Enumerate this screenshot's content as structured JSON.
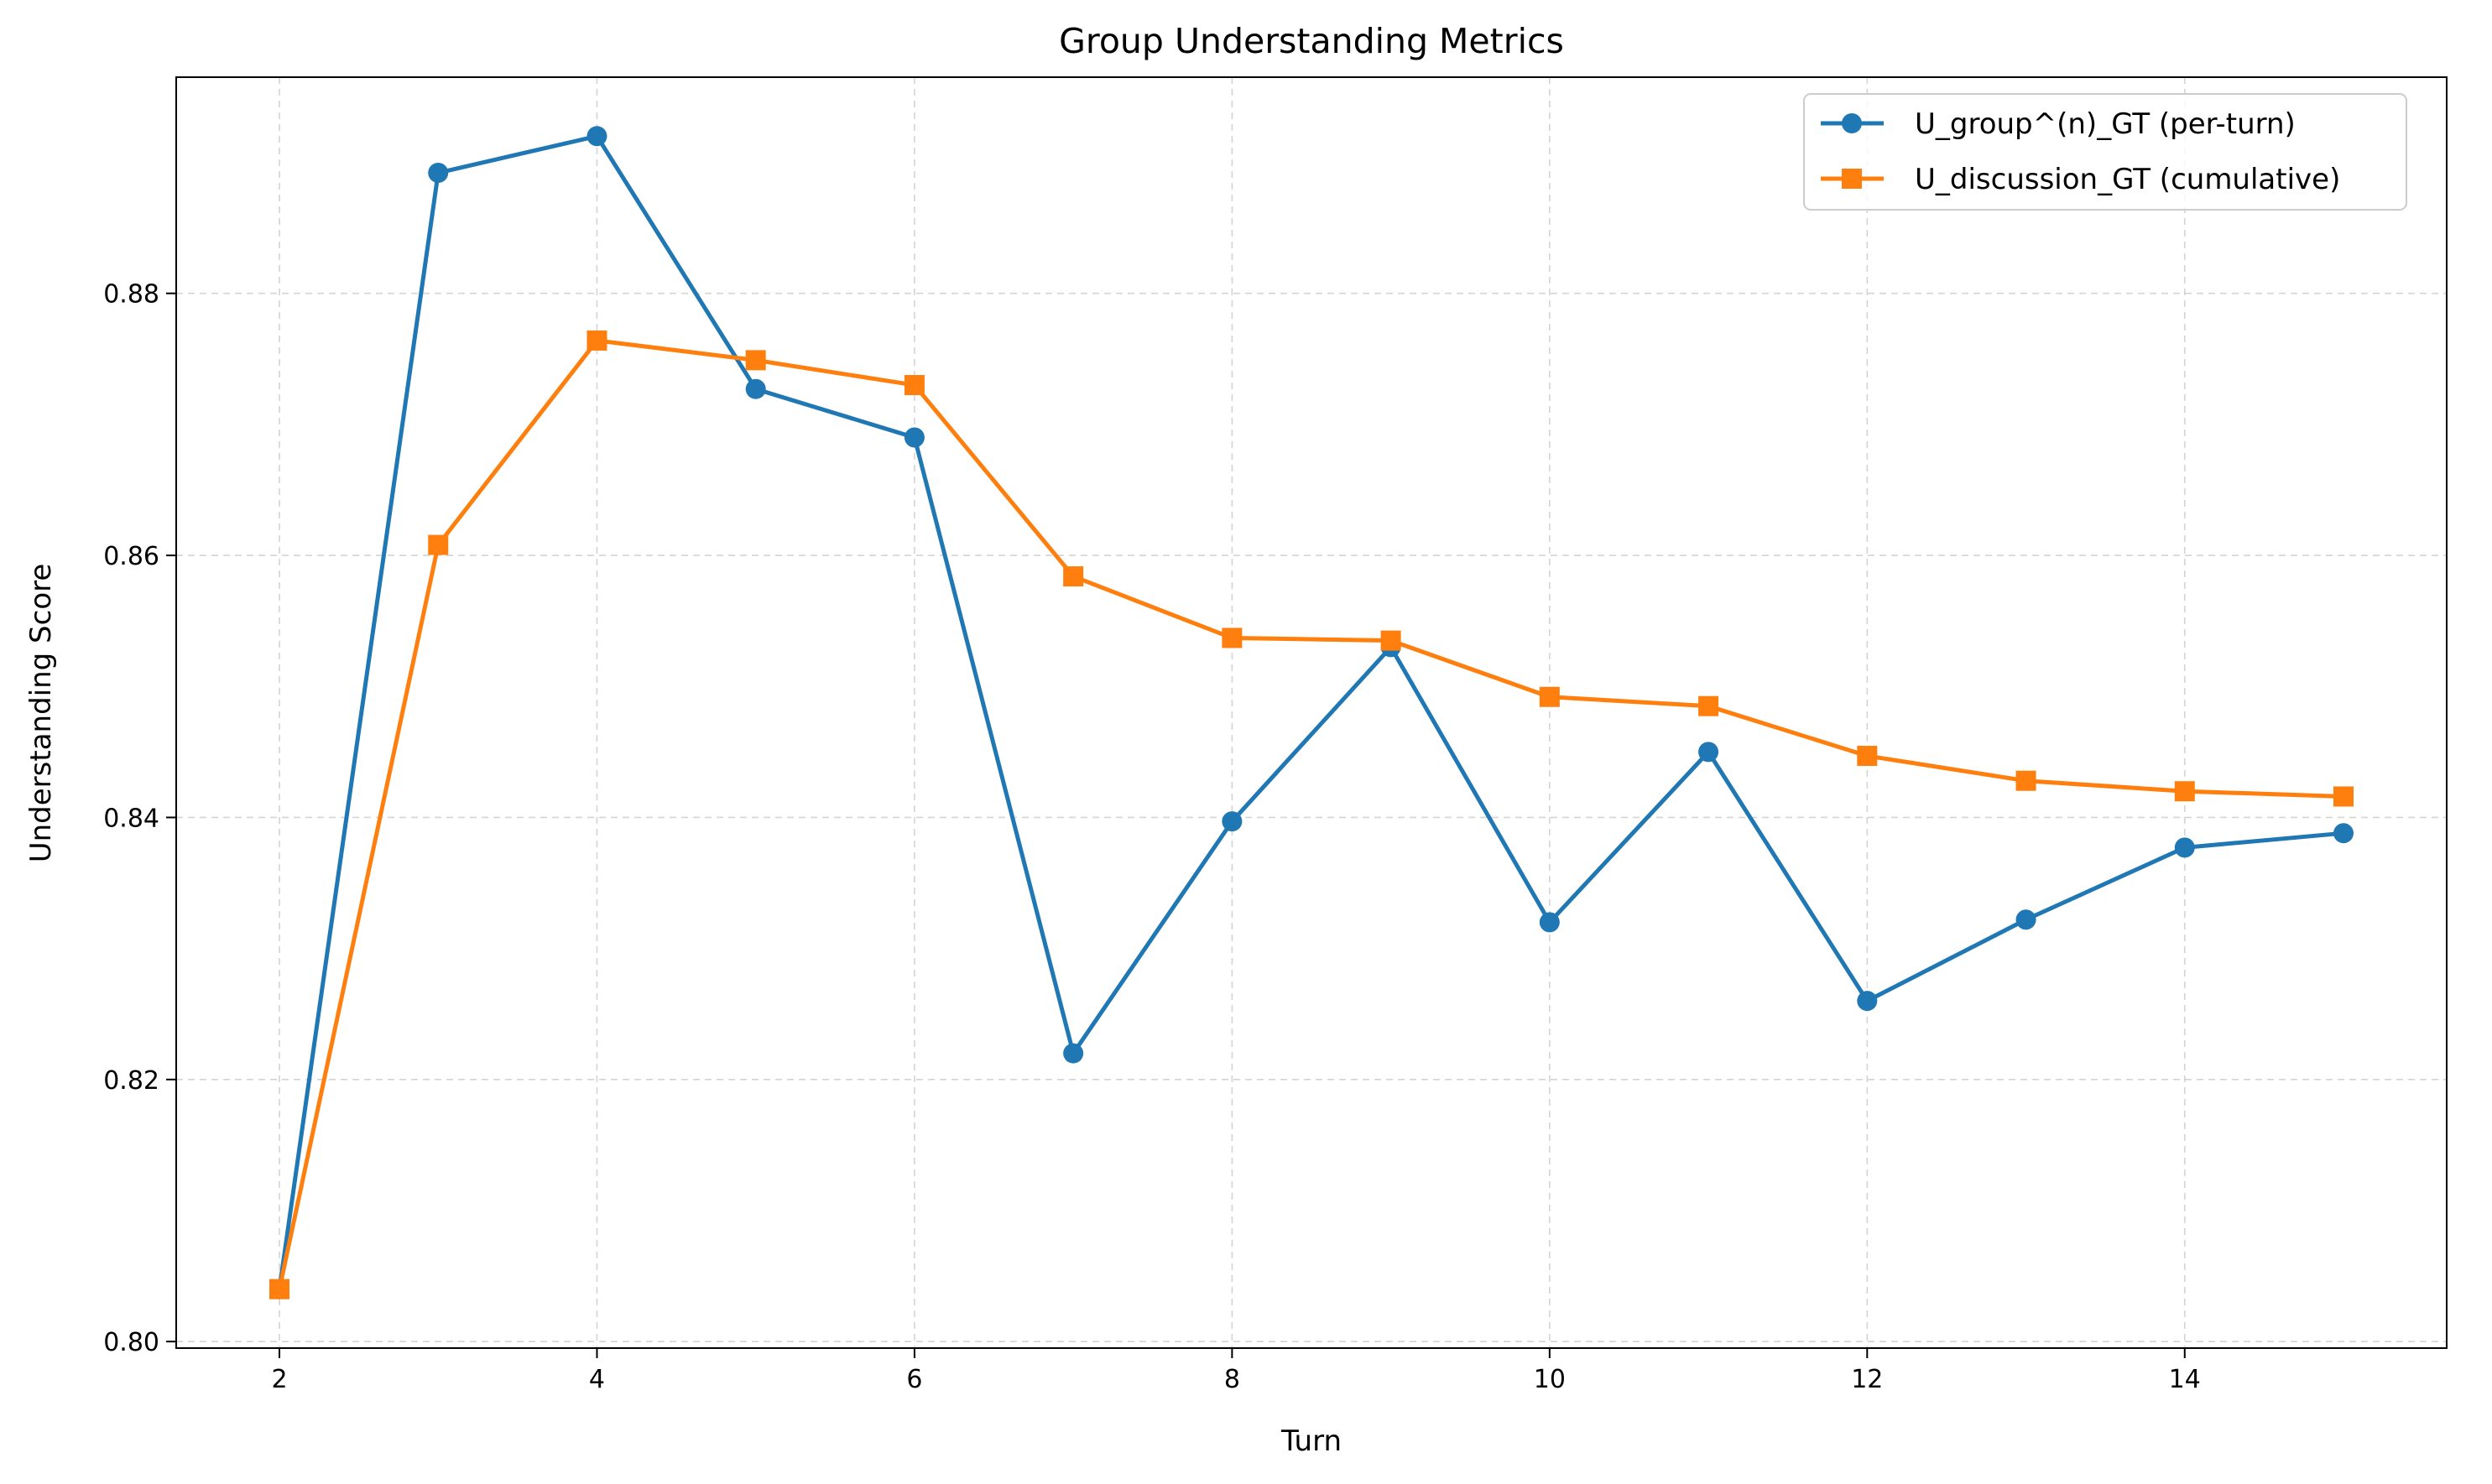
{
  "chart_data": {
    "type": "line",
    "title": "Group Understanding Metrics",
    "xlabel": "Turn",
    "ylabel": "Understanding Score",
    "x": [
      2,
      3,
      4,
      5,
      6,
      7,
      8,
      9,
      10,
      11,
      12,
      13,
      14,
      15
    ],
    "xlim": [
      1.35,
      15.65
    ],
    "ylim": [
      0.7995,
      0.8965
    ],
    "xticks": [
      2,
      4,
      6,
      8,
      10,
      12,
      14
    ],
    "yticks": [
      0.8,
      0.82,
      0.84,
      0.86,
      0.88
    ],
    "xtick_labels": [
      "2",
      "4",
      "6",
      "8",
      "10",
      "12",
      "14"
    ],
    "ytick_labels": [
      "0.80",
      "0.82",
      "0.84",
      "0.86",
      "0.88"
    ],
    "grid": true,
    "legend_position": "top-right",
    "series": [
      {
        "name": "U_group^(n)_GT (per-turn)",
        "color": "#1f77b4",
        "marker": "circle",
        "values": [
          0.804,
          0.8892,
          0.892,
          0.8727,
          0.869,
          0.822,
          0.8397,
          0.853,
          0.832,
          0.845,
          0.826,
          0.8322,
          0.8377,
          0.8388
        ]
      },
      {
        "name": "U_discussion_GT (cumulative)",
        "color": "#ff7f0e",
        "marker": "square",
        "values": [
          0.804,
          0.8608,
          0.8764,
          0.8749,
          0.873,
          0.8584,
          0.8537,
          0.8535,
          0.8492,
          0.8485,
          0.8447,
          0.8428,
          0.842,
          0.8416
        ]
      }
    ]
  }
}
